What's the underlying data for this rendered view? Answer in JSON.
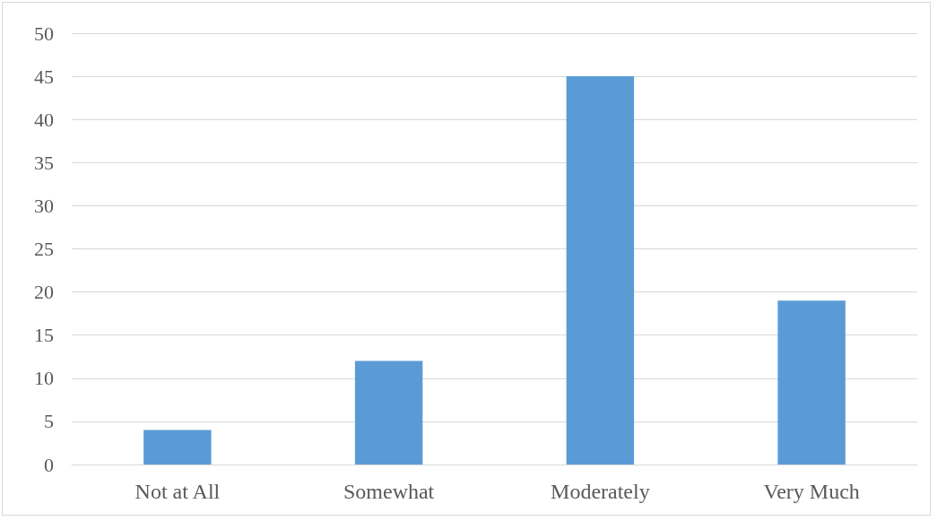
{
  "chart_data": {
    "type": "bar",
    "categories": [
      "Not at All",
      "Somewhat",
      "Moderately",
      "Very Much"
    ],
    "values": [
      4,
      12,
      45,
      19
    ],
    "color": "#5b9bd5",
    "ylim": [
      0,
      50
    ],
    "yticks": [
      0,
      5,
      10,
      15,
      20,
      25,
      30,
      35,
      40,
      45,
      50
    ],
    "grid": "y"
  }
}
